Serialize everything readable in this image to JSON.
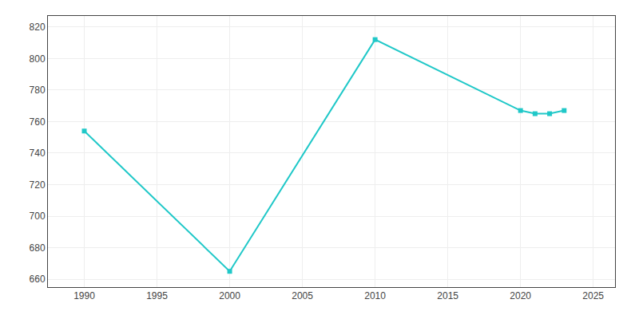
{
  "chart_data": {
    "type": "line",
    "x": [
      1990,
      2000,
      2010,
      2020,
      2021,
      2022,
      2023
    ],
    "values": [
      754,
      665,
      812,
      767,
      765,
      765,
      767
    ],
    "color": "#20C8C8",
    "marker": "square",
    "xlim": [
      1987.5,
      2026.5
    ],
    "ylim": [
      655,
      827
    ],
    "xticks": [
      1990,
      1995,
      2000,
      2005,
      2010,
      2015,
      2020,
      2025
    ],
    "yticks": [
      660,
      680,
      700,
      720,
      740,
      760,
      780,
      800,
      820
    ],
    "grid": true
  }
}
